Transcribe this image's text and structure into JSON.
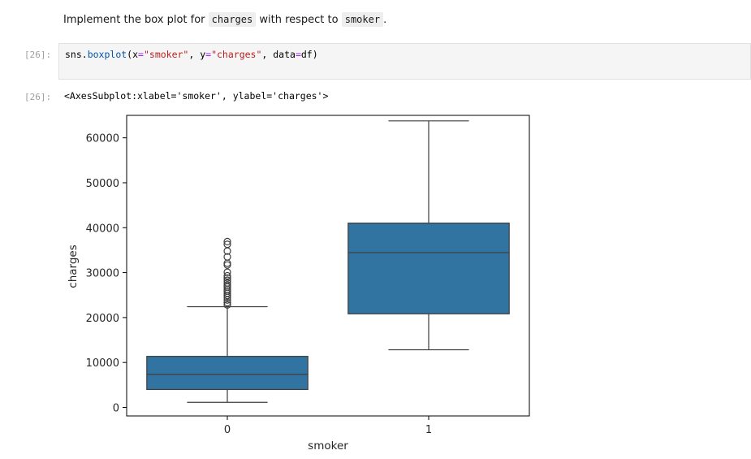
{
  "markdown": {
    "prefix": "Implement the box plot for ",
    "code1": "charges",
    "middle": " with respect to ",
    "code2": "smoker",
    "suffix": "."
  },
  "cell_in": {
    "prompt": "[26]:",
    "tokens": {
      "obj": "sns.",
      "func": "boxplot",
      "open": "(x",
      "eq1": "=",
      "str1": "\"smoker\"",
      "sep1": ", y",
      "eq2": "=",
      "str2": "\"charges\"",
      "sep2": ", data",
      "eq3": "=",
      "arg3": "df)"
    }
  },
  "cell_out": {
    "prompt": "[26]:",
    "text": "<AxesSubplot:xlabel='smoker', ylabel='charges'>"
  },
  "colors": {
    "box_fill": "#3274a1",
    "line": "#3d3d3d"
  },
  "chart_data": {
    "type": "box",
    "xlabel": "smoker",
    "ylabel": "charges",
    "ylim": [
      -1900,
      65000
    ],
    "yticks": [
      0,
      10000,
      20000,
      30000,
      40000,
      50000,
      60000
    ],
    "categories": [
      "0",
      "1"
    ],
    "boxes": [
      {
        "category": "0",
        "whislo": 1122,
        "q1": 3986,
        "med": 7345,
        "q3": 11363,
        "whishi": 22412,
        "fliers": [
          22800,
          23300,
          23900,
          24500,
          24900,
          25400,
          25900,
          26300,
          26800,
          27200,
          27700,
          28300,
          28800,
          29300,
          30100,
          31700,
          32100,
          33500,
          34800,
          36300,
          36900
        ]
      },
      {
        "category": "1",
        "whislo": 12829,
        "q1": 20826,
        "med": 34456,
        "q3": 41019,
        "whishi": 63770,
        "fliers": []
      }
    ]
  }
}
